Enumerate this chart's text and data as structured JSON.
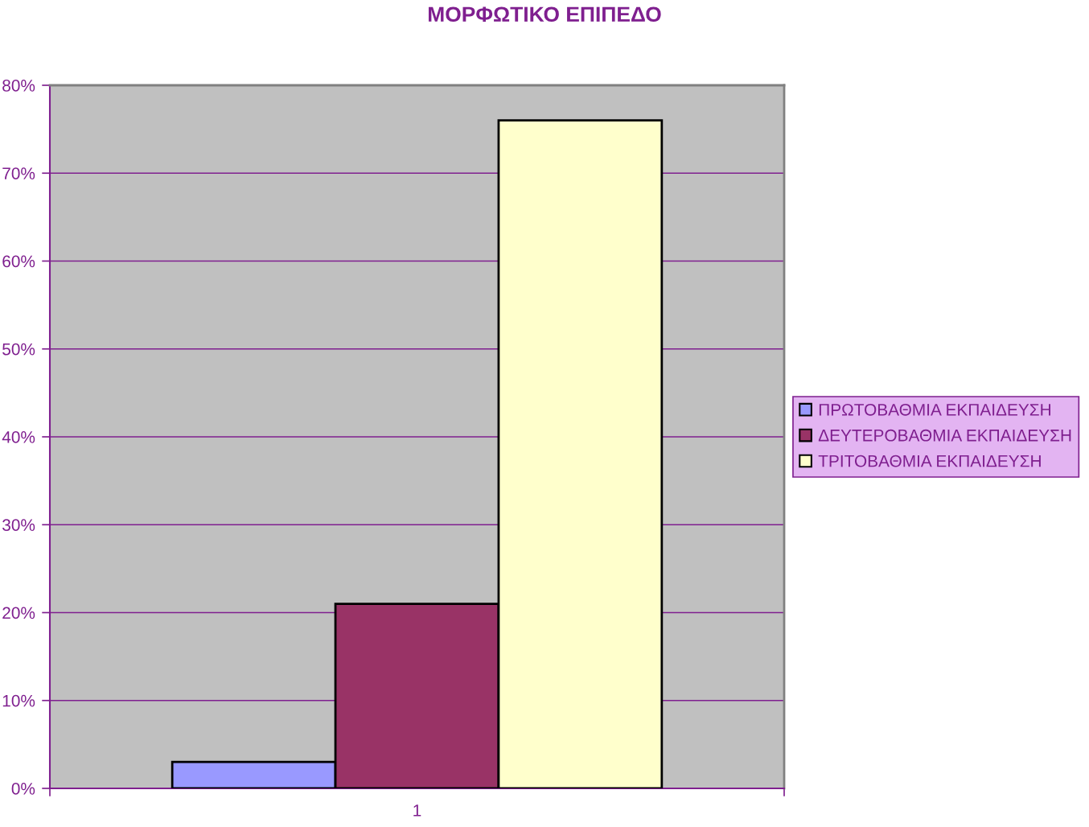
{
  "chart_data": {
    "type": "bar",
    "title": "ΜΟΡΦΩΤΙΚΟ ΕΠΙΠΕΔΟ",
    "categories": [
      "1"
    ],
    "series": [
      {
        "name": "ΠΡΩΤΟΒΑΘΜΙΑ ΕΚΠΑΙΔΕΥΣΗ",
        "color": "#9999ff",
        "values": [
          3
        ]
      },
      {
        "name": "ΔΕΥΤΕΡΟΒΑΘΜΙΑ ΕΚΠΑΙΔΕΥΣΗ",
        "color": "#993366",
        "values": [
          21
        ]
      },
      {
        "name": "ΤΡΙΤΟΒΑΘΜΙΑ ΕΚΠΑΙΔΕΥΣΗ",
        "color": "#ffffcc",
        "values": [
          76
        ]
      }
    ],
    "ylim": [
      0,
      80
    ],
    "yticks": [
      {
        "value": 0,
        "label": "0%"
      },
      {
        "value": 10,
        "label": "10%"
      },
      {
        "value": 20,
        "label": "20%"
      },
      {
        "value": 30,
        "label": "30%"
      },
      {
        "value": 40,
        "label": "40%"
      },
      {
        "value": 50,
        "label": "50%"
      },
      {
        "value": 60,
        "label": "60%"
      },
      {
        "value": 70,
        "label": "70%"
      },
      {
        "value": 80,
        "label": "80%"
      }
    ],
    "grid": "y",
    "legend": "right"
  }
}
